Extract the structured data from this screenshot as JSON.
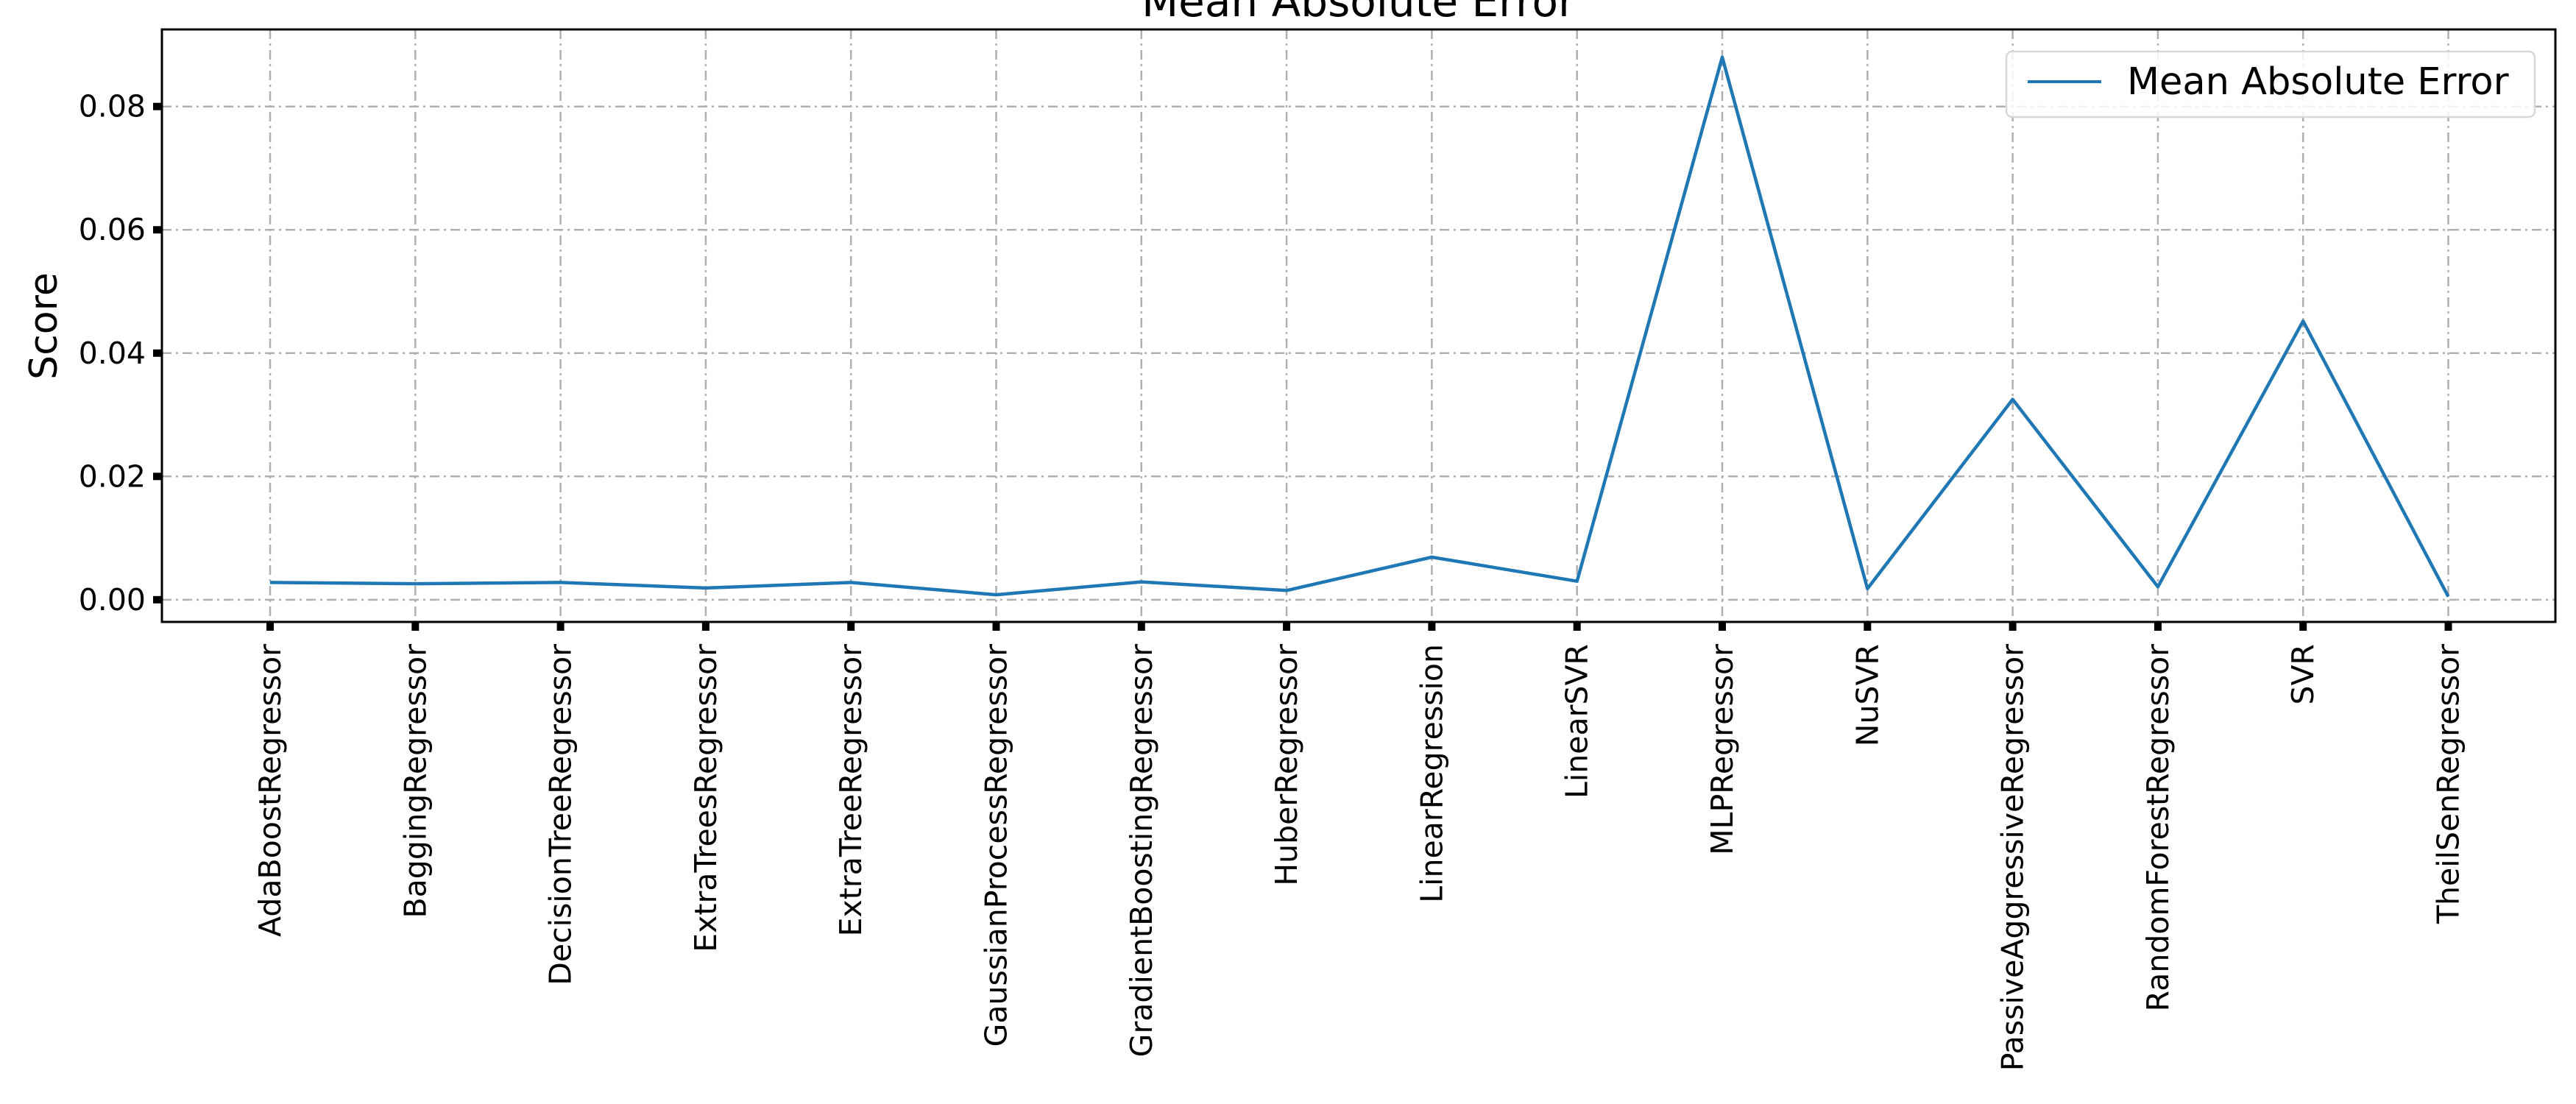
{
  "chart_data": {
    "type": "line",
    "title": "Mean Absolute Error",
    "xlabel": "",
    "ylabel": "Score",
    "ylim": [
      -0.0036,
      0.0925
    ],
    "yticks": [
      "0.00",
      "0.02",
      "0.04",
      "0.06",
      "0.08"
    ],
    "ytick_values": [
      0.0,
      0.02,
      0.04,
      0.06,
      0.08
    ],
    "grid": true,
    "legend_position": "top-right",
    "categories": [
      "AdaBoostRegressor",
      "BaggingRegressor",
      "DecisionTreeRegressor",
      "ExtraTreesRegressor",
      "ExtraTreeRegressor",
      "GaussianProcessRegressor",
      "GradientBoostingRegressor",
      "HuberRegressor",
      "LinearRegression",
      "LinearSVR",
      "MLPRegressor",
      "NuSVR",
      "PassiveAggressiveRegressor",
      "RandomForestRegressor",
      "SVR",
      "TheilSenRegressor"
    ],
    "series": [
      {
        "name": "Mean Absolute Error",
        "color": "#1f77b4",
        "values": [
          0.0028,
          0.0026,
          0.0028,
          0.0019,
          0.0028,
          0.0008,
          0.0029,
          0.0015,
          0.0069,
          0.003,
          0.088,
          0.0018,
          0.0325,
          0.0021,
          0.0452,
          0.0005
        ]
      }
    ]
  }
}
